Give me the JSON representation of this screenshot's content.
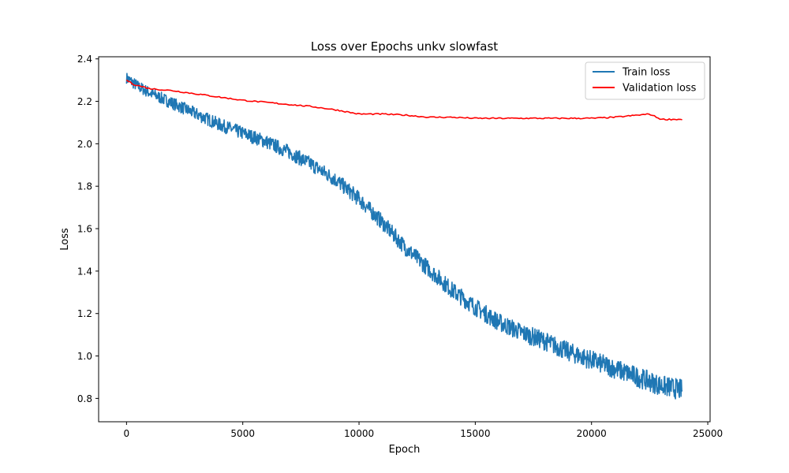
{
  "chart_data": {
    "type": "line",
    "title": "Loss over Epochs unkv slowfast",
    "xlabel": "Epoch",
    "ylabel": "Loss",
    "xlim": [
      -1200,
      25100
    ],
    "ylim": [
      0.69,
      2.41
    ],
    "xticks": [
      0,
      5000,
      10000,
      15000,
      20000,
      25000
    ],
    "xtick_labels": [
      "0",
      "5000",
      "10000",
      "15000",
      "20000",
      "25000"
    ],
    "yticks": [
      0.8,
      1.0,
      1.2,
      1.4,
      1.6,
      1.8,
      2.0,
      2.2,
      2.4
    ],
    "ytick_labels": [
      "0.8",
      "1.0",
      "1.2",
      "1.4",
      "1.6",
      "1.8",
      "2.0",
      "2.2",
      "2.4"
    ],
    "grid": false,
    "legend_position": "top-right",
    "series": [
      {
        "name": "Train loss",
        "color": "#1f77b4",
        "noise": 0.045,
        "x": [
          0,
          500,
          1000,
          2000,
          3000,
          4000,
          5000,
          6000,
          7000,
          8000,
          9000,
          10000,
          11000,
          12000,
          13000,
          14000,
          15000,
          16000,
          17000,
          18000,
          19000,
          20000,
          21000,
          22000,
          23000,
          23900
        ],
        "y": [
          2.31,
          2.27,
          2.24,
          2.19,
          2.14,
          2.09,
          2.05,
          2.01,
          1.96,
          1.9,
          1.83,
          1.74,
          1.63,
          1.51,
          1.41,
          1.31,
          1.23,
          1.16,
          1.11,
          1.07,
          1.02,
          0.98,
          0.94,
          0.9,
          0.86,
          0.84
        ]
      },
      {
        "name": "Validation loss",
        "color": "#ff0000",
        "noise": 0.003,
        "x": [
          0,
          300,
          1000,
          2000,
          3000,
          4000,
          5000,
          6000,
          7000,
          8000,
          9000,
          10000,
          11000,
          12000,
          13000,
          14000,
          15000,
          16000,
          17000,
          18000,
          19000,
          20000,
          21000,
          22000,
          22500,
          23000,
          23900
        ],
        "y": [
          2.3,
          2.28,
          2.26,
          2.25,
          2.235,
          2.22,
          2.205,
          2.195,
          2.185,
          2.175,
          2.16,
          2.14,
          2.14,
          2.135,
          2.125,
          2.125,
          2.12,
          2.12,
          2.12,
          2.12,
          2.12,
          2.12,
          2.125,
          2.135,
          2.14,
          2.115,
          2.115
        ]
      }
    ]
  }
}
